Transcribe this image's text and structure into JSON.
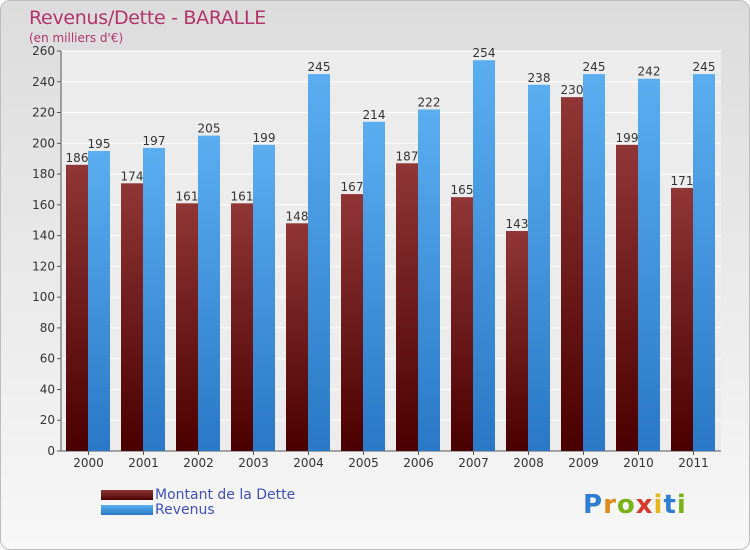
{
  "title": "Revenus/Dette - BARALLE",
  "subtitle": "(en milliers d'€)",
  "colors": {
    "dette": "#7a1a1a",
    "revenus": "#3d8fd9",
    "title": "#b3336b"
  },
  "chart_data": {
    "type": "bar",
    "categories": [
      "2000",
      "2001",
      "2002",
      "2003",
      "2004",
      "2005",
      "2006",
      "2007",
      "2008",
      "2009",
      "2010",
      "2011"
    ],
    "series": [
      {
        "name": "Montant de la Dette",
        "values": [
          186,
          174,
          161,
          161,
          148,
          167,
          187,
          165,
          143,
          230,
          199,
          171
        ]
      },
      {
        "name": "Revenus",
        "values": [
          195,
          197,
          205,
          199,
          245,
          214,
          222,
          254,
          238,
          245,
          242,
          245
        ]
      }
    ],
    "ylim": [
      0,
      260
    ],
    "yticks": [
      0,
      20,
      40,
      60,
      80,
      100,
      120,
      140,
      160,
      180,
      200,
      220,
      240,
      260
    ],
    "grid": true,
    "legend": "bottom-left"
  },
  "logo": [
    "P",
    "r",
    "o",
    "x",
    "i",
    "t",
    "i"
  ]
}
